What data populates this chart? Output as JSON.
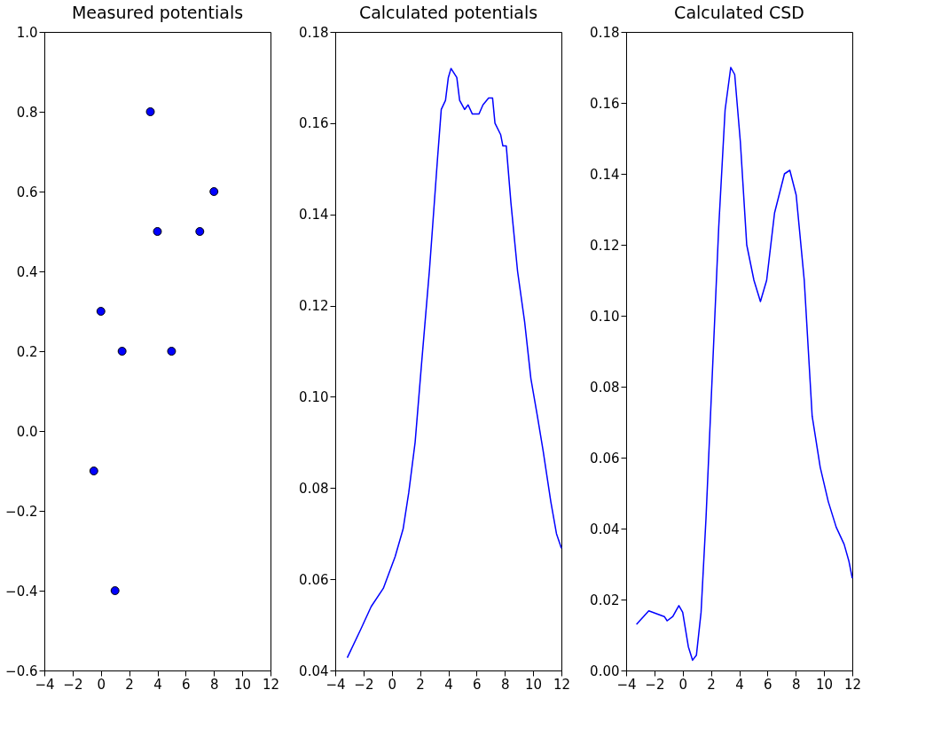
{
  "chart_data": [
    {
      "type": "scatter",
      "title": "Measured potentials",
      "marker": "circle",
      "xlim": [
        -4,
        12
      ],
      "xticks": [
        -4,
        -2,
        0,
        2,
        4,
        6,
        8,
        10,
        12
      ],
      "ylim": [
        -0.6,
        1.0
      ],
      "yticks": [
        -0.6,
        -0.4,
        -0.2,
        {
          "value": 0,
          "label": "0.0"
        },
        0.2,
        0.4,
        0.6,
        0.8,
        {
          "value": 1,
          "label": "1.0"
        }
      ],
      "x": [
        3.5,
        8,
        4,
        7,
        0,
        1.5,
        5,
        -0.5,
        1
      ],
      "series": [
        {
          "color": "#0000ff",
          "values": [
            0.8,
            0.6,
            0.5,
            0.5,
            0.3,
            0.2,
            0.2,
            -0.1,
            -0.4
          ]
        }
      ]
    },
    {
      "type": "line",
      "title": "Calculated potentials",
      "xlim": [
        -4,
        12
      ],
      "xticks": [
        -4,
        -2,
        0,
        2,
        4,
        6,
        8,
        10,
        12
      ],
      "ylim": [
        0.04,
        0.18
      ],
      "yticks": [
        0.04,
        0.06,
        0.08,
        {
          "value": 0.1,
          "label": "0.10"
        },
        0.12,
        0.14,
        0.16,
        0.18
      ],
      "x": [
        -3.15,
        -2.2,
        -1.46,
        -0.6,
        0.24,
        0.8,
        1.2,
        1.65,
        2.1,
        2.67,
        3.23,
        3.5,
        3.8,
        4.0,
        4.19,
        4.6,
        4.8,
        5.15,
        5.4,
        5.7,
        6.17,
        6.45,
        6.85,
        7.13,
        7.3,
        7.7,
        7.86,
        8.1,
        8.43,
        8.9,
        9.4,
        9.84,
        10.3,
        10.7,
        11.25,
        11.65,
        12
      ],
      "series": [
        {
          "color": "#0000ff",
          "values": [
            0.0428,
            0.049,
            0.054,
            0.058,
            0.065,
            0.071,
            0.079,
            0.09,
            0.107,
            0.128,
            0.152,
            0.163,
            0.165,
            0.17,
            0.172,
            0.17,
            0.165,
            0.163,
            0.164,
            0.162,
            0.162,
            0.164,
            0.1655,
            0.1655,
            0.16,
            0.1575,
            0.155,
            0.155,
            0.1425,
            0.1275,
            0.1164,
            0.104,
            0.0958,
            0.0883,
            0.077,
            0.07,
            0.0668
          ]
        }
      ]
    },
    {
      "type": "line",
      "title": "Calculated CSD",
      "xlim": [
        -4,
        12
      ],
      "xticks": [
        -4,
        -2,
        0,
        2,
        4,
        6,
        8,
        10,
        12
      ],
      "ylim": [
        0.0,
        0.18
      ],
      "yticks": [
        {
          "value": 0,
          "label": "0.00"
        },
        0.02,
        0.04,
        0.06,
        0.08,
        {
          "value": 0.1,
          "label": "0.10"
        },
        0.12,
        0.14,
        0.16,
        0.18
      ],
      "x": [
        -3.27,
        -2.4,
        -1.3,
        -1.1,
        -0.7,
        -0.27,
        0.0,
        0.4,
        0.7,
        0.97,
        1.3,
        1.65,
        2.1,
        2.55,
        3.0,
        3.4,
        3.68,
        4.08,
        4.53,
        5.04,
        5.5,
        5.94,
        6.5,
        7.2,
        7.58,
        8.03,
        8.6,
        9.16,
        9.73,
        10.3,
        10.86,
        11.42,
        11.76,
        12
      ],
      "series": [
        {
          "color": "#0000ff",
          "values": [
            0.013,
            0.0168,
            0.0152,
            0.014,
            0.0152,
            0.0183,
            0.0164,
            0.0067,
            0.0029,
            0.0043,
            0.0164,
            0.043,
            0.084,
            0.125,
            0.158,
            0.17,
            0.168,
            0.149,
            0.12,
            0.11,
            0.104,
            0.11,
            0.129,
            0.14,
            0.141,
            0.134,
            0.11,
            0.0717,
            0.0573,
            0.0476,
            0.0404,
            0.0356,
            0.0308,
            0.026
          ]
        }
      ]
    }
  ]
}
